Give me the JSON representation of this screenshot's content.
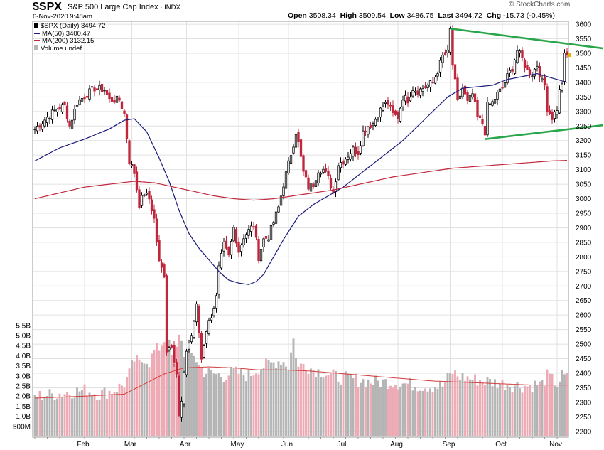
{
  "header": {
    "symbol": "$SPX",
    "description": "S&P 500 Large Cap Index",
    "exchange": "INDX",
    "datetime": "6-Nov-2020 9:48am",
    "brand": "© StockCharts.com",
    "quote": {
      "open_label": "Open",
      "open": "3508.34",
      "high_label": "High",
      "high": "3509.54",
      "low_label": "Low",
      "low": "3486.75",
      "last_label": "Last",
      "last": "3494.72",
      "chg_label": "Chg",
      "chg": "-15.73 (-0.45%)"
    }
  },
  "legend": {
    "price": "$SPX (Daily) 3494.72",
    "ma50": "MA(50) 3400.47",
    "ma200": "MA(200) 3132.15",
    "volume": "Volume undef"
  },
  "colors": {
    "up": "#000000",
    "down": "#c0263c",
    "ma50": "#1a1a7a",
    "ma200": "#c0263c",
    "trendline": "#2aa64a",
    "vol_up": "#b4b4b4",
    "vol_down": "#eeaab4",
    "vol_ma": "#d33b3b",
    "grid": "#e1e1e1"
  },
  "chart_data": {
    "type": "candlestick",
    "title": "S&P 500 Large Cap Index (Daily)",
    "price_axis": {
      "ylim": [
        2180,
        3610
      ],
      "ticks": [
        "2200",
        "2250",
        "2300",
        "2350",
        "2400",
        "2450",
        "2500",
        "2550",
        "2600",
        "2650",
        "2700",
        "2750",
        "2800",
        "2850",
        "2900",
        "2950",
        "3000",
        "3050",
        "3100",
        "3150",
        "3200",
        "3250",
        "3300",
        "3350",
        "3400",
        "3450",
        "3500",
        "3550",
        "3600"
      ]
    },
    "volume_axis": {
      "ylim": [
        0,
        5.6
      ],
      "unit": "B",
      "ticks": [
        {
          "v": 0.5,
          "label": "500M"
        },
        {
          "v": 1.0,
          "label": "1.0B"
        },
        {
          "v": 1.5,
          "label": "1.5B"
        },
        {
          "v": 2.0,
          "label": "2.0B"
        },
        {
          "v": 2.5,
          "label": "2.5B"
        },
        {
          "v": 3.0,
          "label": "3.0B"
        },
        {
          "v": 3.5,
          "label": "3.5B"
        },
        {
          "v": 4.0,
          "label": "4.0B"
        },
        {
          "v": 4.5,
          "label": "4.5B"
        },
        {
          "v": 5.0,
          "label": "5.0B"
        },
        {
          "v": 5.5,
          "label": "5.5B"
        }
      ]
    },
    "months": [
      "Feb",
      "Mar",
      "Apr",
      "May",
      "Jun",
      "Jul",
      "Aug",
      "Sep",
      "Oct",
      "Nov"
    ],
    "month_start_index": [
      20,
      39,
      61,
      82,
      102,
      124,
      146,
      167,
      188,
      210
    ],
    "close_anchors": [
      [
        0,
        3240
      ],
      [
        5,
        3280
      ],
      [
        9,
        3310
      ],
      [
        12,
        3320
      ],
      [
        14,
        3250
      ],
      [
        17,
        3330
      ],
      [
        21,
        3360
      ],
      [
        24,
        3380
      ],
      [
        28,
        3375
      ],
      [
        30,
        3340
      ],
      [
        34,
        3340
      ],
      [
        36,
        3290
      ],
      [
        38,
        3130
      ],
      [
        40,
        3090
      ],
      [
        42,
        2980
      ],
      [
        44,
        3020
      ],
      [
        46,
        3000
      ],
      [
        48,
        2930
      ],
      [
        50,
        2780
      ],
      [
        52,
        2740
      ],
      [
        53,
        2480
      ],
      [
        55,
        2500
      ],
      [
        57,
        2400
      ],
      [
        58,
        2250
      ],
      [
        59,
        2300
      ],
      [
        61,
        2480
      ],
      [
        63,
        2530
      ],
      [
        65,
        2630
      ],
      [
        67,
        2450
      ],
      [
        69,
        2550
      ],
      [
        71,
        2600
      ],
      [
        73,
        2660
      ],
      [
        74,
        2760
      ],
      [
        76,
        2840
      ],
      [
        78,
        2800
      ],
      [
        80,
        2900
      ],
      [
        82,
        2820
      ],
      [
        84,
        2870
      ],
      [
        86,
        2890
      ],
      [
        88,
        2910
      ],
      [
        90,
        2800
      ],
      [
        92,
        2860
      ],
      [
        94,
        2870
      ],
      [
        96,
        2920
      ],
      [
        98,
        2970
      ],
      [
        100,
        3050
      ],
      [
        102,
        3120
      ],
      [
        104,
        3190
      ],
      [
        105,
        3230
      ],
      [
        106,
        3190
      ],
      [
        108,
        3090
      ],
      [
        110,
        3040
      ],
      [
        112,
        3050
      ],
      [
        114,
        3100
      ],
      [
        116,
        3100
      ],
      [
        118,
        3070
      ],
      [
        120,
        3020
      ],
      [
        122,
        3120
      ],
      [
        124,
        3130
      ],
      [
        126,
        3150
      ],
      [
        128,
        3170
      ],
      [
        130,
        3160
      ],
      [
        132,
        3230
      ],
      [
        134,
        3250
      ],
      [
        136,
        3260
      ],
      [
        138,
        3290
      ],
      [
        140,
        3320
      ],
      [
        142,
        3330
      ],
      [
        144,
        3290
      ],
      [
        146,
        3280
      ],
      [
        148,
        3350
      ],
      [
        150,
        3340
      ],
      [
        152,
        3380
      ],
      [
        154,
        3370
      ],
      [
        156,
        3380
      ],
      [
        158,
        3390
      ],
      [
        160,
        3400
      ],
      [
        162,
        3440
      ],
      [
        164,
        3490
      ],
      [
        166,
        3500
      ],
      [
        167,
        3580
      ],
      [
        168,
        3460
      ],
      [
        169,
        3400
      ],
      [
        170,
        3330
      ],
      [
        172,
        3380
      ],
      [
        174,
        3330
      ],
      [
        176,
        3360
      ],
      [
        178,
        3280
      ],
      [
        180,
        3260
      ],
      [
        181,
        3230
      ],
      [
        182,
        3320
      ],
      [
        184,
        3330
      ],
      [
        186,
        3360
      ],
      [
        188,
        3380
      ],
      [
        190,
        3420
      ],
      [
        192,
        3450
      ],
      [
        194,
        3510
      ],
      [
        196,
        3480
      ],
      [
        198,
        3440
      ],
      [
        200,
        3430
      ],
      [
        202,
        3460
      ],
      [
        204,
        3400
      ],
      [
        205,
        3390
      ],
      [
        206,
        3310
      ],
      [
        208,
        3280
      ],
      [
        210,
        3310
      ],
      [
        211,
        3370
      ],
      [
        212,
        3400
      ],
      [
        213,
        3490
      ],
      [
        214,
        3495
      ]
    ],
    "volume_anchors": [
      [
        0,
        2.0
      ],
      [
        8,
        2.1
      ],
      [
        14,
        2.2
      ],
      [
        20,
        2.3
      ],
      [
        26,
        2.1
      ],
      [
        32,
        2.3
      ],
      [
        36,
        2.6
      ],
      [
        38,
        3.1
      ],
      [
        40,
        3.8
      ],
      [
        42,
        3.6
      ],
      [
        44,
        3.9
      ],
      [
        46,
        3.7
      ],
      [
        48,
        4.2
      ],
      [
        50,
        4.4
      ],
      [
        52,
        4.8
      ],
      [
        54,
        4.5
      ],
      [
        56,
        3.4
      ],
      [
        58,
        5.2
      ],
      [
        60,
        4.2
      ],
      [
        62,
        4.0
      ],
      [
        64,
        4.1
      ],
      [
        66,
        3.5
      ],
      [
        68,
        3.2
      ],
      [
        72,
        3.1
      ],
      [
        76,
        3.0
      ],
      [
        80,
        3.2
      ],
      [
        86,
        3.0
      ],
      [
        90,
        3.4
      ],
      [
        95,
        3.6
      ],
      [
        99,
        3.8
      ],
      [
        102,
        3.5
      ],
      [
        104,
        4.8
      ],
      [
        106,
        3.4
      ],
      [
        108,
        3.6
      ],
      [
        112,
        3.3
      ],
      [
        116,
        3.2
      ],
      [
        120,
        3.0
      ],
      [
        124,
        2.9
      ],
      [
        130,
        2.8
      ],
      [
        136,
        2.7
      ],
      [
        142,
        2.7
      ],
      [
        150,
        2.6
      ],
      [
        156,
        2.5
      ],
      [
        164,
        2.5
      ],
      [
        166,
        2.9
      ],
      [
        168,
        3.2
      ],
      [
        170,
        3.0
      ],
      [
        174,
        2.9
      ],
      [
        178,
        2.8
      ],
      [
        184,
        2.7
      ],
      [
        190,
        2.6
      ],
      [
        196,
        2.5
      ],
      [
        204,
        2.6
      ],
      [
        206,
        3.0
      ],
      [
        208,
        2.8
      ],
      [
        210,
        2.6
      ],
      [
        212,
        3.0
      ],
      [
        214,
        2.9
      ]
    ],
    "ma50_anchors": [
      [
        0,
        3130
      ],
      [
        10,
        3175
      ],
      [
        20,
        3205
      ],
      [
        30,
        3240
      ],
      [
        36,
        3270
      ],
      [
        40,
        3275
      ],
      [
        45,
        3230
      ],
      [
        50,
        3140
      ],
      [
        54,
        3060
      ],
      [
        58,
        2960
      ],
      [
        62,
        2880
      ],
      [
        66,
        2830
      ],
      [
        70,
        2790
      ],
      [
        74,
        2750
      ],
      [
        78,
        2720
      ],
      [
        82,
        2710
      ],
      [
        86,
        2705
      ],
      [
        89,
        2715
      ],
      [
        92,
        2740
      ],
      [
        96,
        2800
      ],
      [
        100,
        2860
      ],
      [
        106,
        2940
      ],
      [
        112,
        2980
      ],
      [
        118,
        3010
      ],
      [
        124,
        3040
      ],
      [
        130,
        3080
      ],
      [
        136,
        3120
      ],
      [
        142,
        3160
      ],
      [
        148,
        3200
      ],
      [
        154,
        3250
      ],
      [
        160,
        3300
      ],
      [
        166,
        3350
      ],
      [
        172,
        3380
      ],
      [
        178,
        3385
      ],
      [
        184,
        3390
      ],
      [
        190,
        3410
      ],
      [
        196,
        3420
      ],
      [
        202,
        3430
      ],
      [
        206,
        3420
      ],
      [
        210,
        3410
      ],
      [
        214,
        3400
      ]
    ],
    "ma200_anchors": [
      [
        0,
        3000
      ],
      [
        10,
        3020
      ],
      [
        20,
        3040
      ],
      [
        30,
        3050
      ],
      [
        40,
        3060
      ],
      [
        48,
        3055
      ],
      [
        56,
        3040
      ],
      [
        64,
        3025
      ],
      [
        72,
        3010
      ],
      [
        80,
        3000
      ],
      [
        88,
        2995
      ],
      [
        96,
        3000
      ],
      [
        104,
        3010
      ],
      [
        112,
        3020
      ],
      [
        120,
        3030
      ],
      [
        128,
        3045
      ],
      [
        136,
        3060
      ],
      [
        144,
        3075
      ],
      [
        152,
        3085
      ],
      [
        160,
        3095
      ],
      [
        168,
        3105
      ],
      [
        176,
        3110
      ],
      [
        184,
        3115
      ],
      [
        192,
        3120
      ],
      [
        200,
        3125
      ],
      [
        208,
        3130
      ],
      [
        214,
        3132
      ]
    ],
    "vol_ma_anchors": [
      [
        0,
        1.9
      ],
      [
        20,
        2.0
      ],
      [
        36,
        2.1
      ],
      [
        44,
        2.6
      ],
      [
        52,
        3.1
      ],
      [
        60,
        3.4
      ],
      [
        70,
        3.45
      ],
      [
        80,
        3.4
      ],
      [
        90,
        3.3
      ],
      [
        100,
        3.3
      ],
      [
        110,
        3.25
      ],
      [
        120,
        3.15
      ],
      [
        130,
        3.05
      ],
      [
        140,
        2.95
      ],
      [
        150,
        2.85
      ],
      [
        160,
        2.75
      ],
      [
        170,
        2.7
      ],
      [
        180,
        2.65
      ],
      [
        190,
        2.6
      ],
      [
        200,
        2.55
      ],
      [
        214,
        2.55
      ]
    ],
    "trendlines": [
      {
        "name": "upper",
        "from": [
          167,
          3585
        ],
        "to": [
          232,
          3517
        ]
      },
      {
        "name": "lower",
        "from": [
          181,
          3205
        ],
        "to": [
          232,
          3253
        ]
      }
    ]
  }
}
